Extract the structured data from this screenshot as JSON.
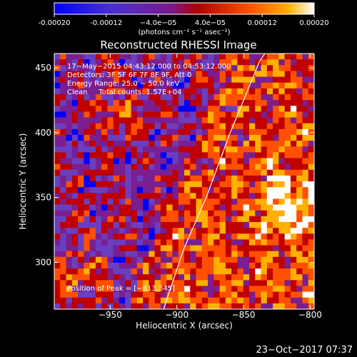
{
  "chart_data": {
    "type": "heatmap",
    "title": "Reconstructed RHESSI Image",
    "xlabel": "Heliocentric X (arcsec)",
    "ylabel": "Heliocentric Y (arcsec)",
    "xlim": [
      -992,
      -797
    ],
    "ylim": [
      264,
      461
    ],
    "x_ticks": [
      -950,
      -900,
      -850,
      -800
    ],
    "x_tick_labels": [
      "−950",
      "−900",
      "−850",
      "−800"
    ],
    "y_ticks": [
      300,
      350,
      400,
      450
    ],
    "y_tick_labels": [
      "300",
      "350",
      "400",
      "450"
    ],
    "colorbar": {
      "range": [
        -0.0002,
        0.0002
      ],
      "ticks": [
        -0.0002,
        -0.00012,
        -4e-05,
        4e-05,
        0.00012,
        0.0002
      ],
      "tick_labels": [
        "-0.00020",
        "-0.00012",
        "−4.0e−05",
        "4.0e−05",
        "0.00012",
        "0.00020"
      ],
      "unit_label": "(photons cm⁻² s⁻¹ asec⁻²)",
      "colormap": [
        "#0000ff",
        "#6a3fbf",
        "#7a1f90",
        "#c00000",
        "#ff5000",
        "#ffb000",
        "#ffffff"
      ]
    },
    "annotations": [
      "17−May−2015 04:43:12.000 to 04:53:12.000",
      "Detectors: 3F 5F 6F 7F 8F 9F, Att 0",
      "Energy Range: 25.0 − 50.0 keV",
      "Clean     Total counts: 1.57E+04",
      "Position of Peak = [−813,345]"
    ],
    "peak": {
      "x": -813,
      "y": 345
    },
    "limb_curve": [
      [
        -910,
        264
      ],
      [
        -895,
        310
      ],
      [
        -878,
        350
      ],
      [
        -860,
        400
      ],
      [
        -838,
        455
      ],
      [
        -834,
        461
      ]
    ],
    "grid": false,
    "legend": "colorbar-top"
  },
  "footer_timestamp": "23−Oct−2017 07:37"
}
